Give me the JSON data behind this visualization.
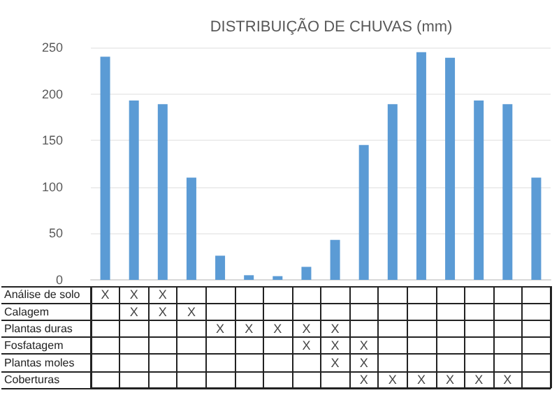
{
  "chart_data": [
    {
      "type": "bar",
      "title": "DISTRIBUIÇÃO DE CHUVAS (mm)",
      "categories": [
        null,
        null,
        null,
        null,
        null,
        null,
        null,
        null,
        null,
        null,
        null,
        null,
        null,
        null,
        null,
        null
      ],
      "values": [
        240,
        193,
        189,
        110,
        26,
        5,
        4,
        14,
        43,
        145,
        189,
        245,
        239,
        193,
        189,
        110
      ],
      "color": "#5b9bd5",
      "ylim": [
        0,
        250
      ],
      "yticks": [
        0,
        50,
        100,
        150,
        200,
        250
      ],
      "grid": "y"
    },
    {
      "type": "heatmap",
      "categories": [
        null,
        null,
        null,
        null,
        null,
        null,
        null,
        null,
        null,
        null,
        null,
        null,
        null,
        null,
        null,
        null
      ],
      "y_categories": [
        "Análise de solo",
        "Calagem",
        "Plantas duras",
        "Fosfatagem",
        "Plantas moles",
        "Coberturas"
      ],
      "cells": [
        [
          "X",
          "X",
          "X",
          null,
          null,
          null,
          null,
          null,
          null,
          null,
          null,
          null,
          null,
          null,
          null,
          null
        ],
        [
          null,
          "X",
          "X",
          "X",
          null,
          null,
          null,
          null,
          null,
          null,
          null,
          null,
          null,
          null,
          null,
          null
        ],
        [
          null,
          null,
          null,
          null,
          "X",
          "X",
          "X",
          "X",
          "X",
          null,
          null,
          null,
          null,
          null,
          null,
          null
        ],
        [
          null,
          null,
          null,
          null,
          null,
          null,
          null,
          "X",
          "X",
          "X",
          null,
          null,
          null,
          null,
          null,
          null
        ],
        [
          null,
          null,
          null,
          null,
          null,
          null,
          null,
          null,
          "X",
          "X",
          null,
          null,
          null,
          null,
          null,
          null
        ],
        [
          null,
          null,
          null,
          null,
          null,
          null,
          null,
          null,
          null,
          "X",
          "X",
          "X",
          "X",
          "X",
          "X",
          null
        ]
      ]
    }
  ]
}
